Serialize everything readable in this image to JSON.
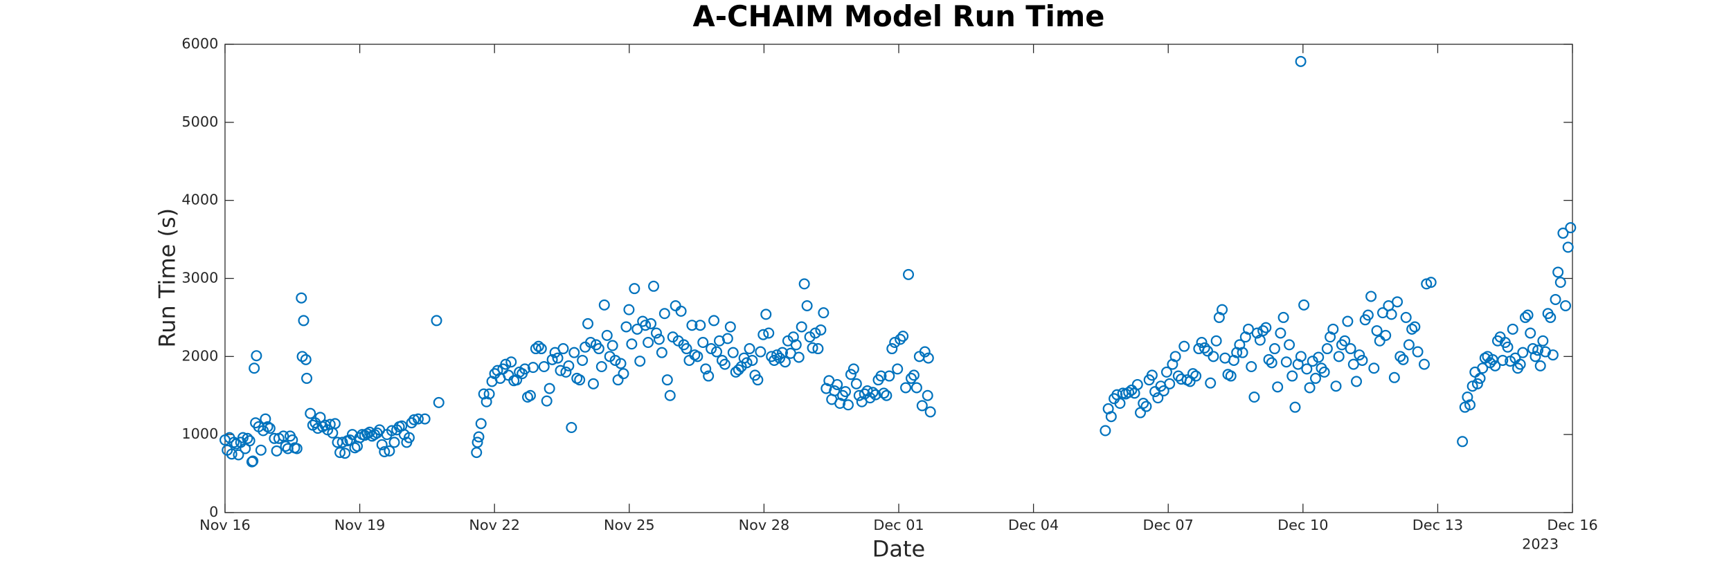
{
  "chart_data": {
    "type": "scatter",
    "title": "A-CHAIM Model Run Time",
    "xlabel": "Date",
    "ylabel": "Run Time (s)",
    "x_offset_label": "2023",
    "color": "#0072bd",
    "xlim": [
      0,
      30
    ],
    "xticks": [
      {
        "value": 0,
        "label": "Nov 16"
      },
      {
        "value": 3,
        "label": "Nov 19"
      },
      {
        "value": 6,
        "label": "Nov 22"
      },
      {
        "value": 9,
        "label": "Nov 25"
      },
      {
        "value": 12,
        "label": "Nov 28"
      },
      {
        "value": 15,
        "label": "Dec 01"
      },
      {
        "value": 18,
        "label": "Dec 04"
      },
      {
        "value": 21,
        "label": "Dec 07"
      },
      {
        "value": 24,
        "label": "Dec 10"
      },
      {
        "value": 27,
        "label": "Dec 13"
      },
      {
        "value": 30,
        "label": "Dec 16"
      }
    ],
    "ylim": [
      0,
      6000
    ],
    "yticks": [
      0,
      1000,
      2000,
      3000,
      4000,
      5000,
      6000
    ],
    "x": [
      0,
      0.05,
      0.1,
      0.15,
      0.2,
      0.25,
      0.3,
      0.35,
      0.4,
      0.45,
      0.5,
      0.55,
      0.6,
      0.62,
      0.65,
      0.7,
      0.68,
      0.75,
      0.8,
      0.85,
      0.9,
      0.95,
      1,
      1.1,
      1.15,
      1.2,
      1.3,
      1.35,
      1.4,
      1.45,
      1.5,
      1.55,
      1.6,
      1.7,
      1.75,
      1.72,
      1.8,
      1.82,
      1.9,
      1.955,
      2.01,
      2.065,
      2.12,
      2.175,
      2.23,
      2.285,
      2.34,
      2.395,
      2.45,
      2.505,
      2.56,
      2.615,
      2.67,
      2.725,
      2.78,
      2.835,
      2.89,
      2.945,
      3,
      3.055,
      3.11,
      3.165,
      3.22,
      3.275,
      3.33,
      3.385,
      3.44,
      3.495,
      3.55,
      3.605,
      3.66,
      3.715,
      3.77,
      3.825,
      3.88,
      3.935,
      3.99,
      4.045,
      4.1,
      4.155,
      4.21,
      4.3,
      4.45,
      4.71,
      4.76,
      5.6,
      5.62,
      5.65,
      5.7,
      5.761,
      5.822,
      5.883,
      5.944,
      6.005,
      6.066,
      6.127,
      6.188,
      6.249,
      6.31,
      6.371,
      6.432,
      6.493,
      6.554,
      6.615,
      6.676,
      6.737,
      6.798,
      6.859,
      6.92,
      6.981,
      7.042,
      7.103,
      7.164,
      7.225,
      7.286,
      7.347,
      7.408,
      7.469,
      7.53,
      7.591,
      7.652,
      7.713,
      7.774,
      7.835,
      7.896,
      7.957,
      8.018,
      8.079,
      8.14,
      8.201,
      8.262,
      8.323,
      8.384,
      8.445,
      8.506,
      8.567,
      8.628,
      8.689,
      8.75,
      8.811,
      8.872,
      8.933,
      8.994,
      9.055,
      9.116,
      9.177,
      9.238,
      9.299,
      9.36,
      9.421,
      9.482,
      9.543,
      9.604,
      9.665,
      9.726,
      9.787,
      9.848,
      9.909,
      9.97,
      10.031,
      10.092,
      10.153,
      10.214,
      10.275,
      10.336,
      10.397,
      10.458,
      10.519,
      10.58,
      10.641,
      10.702,
      10.763,
      10.824,
      10.885,
      10.946,
      11.007,
      11.068,
      11.129,
      11.19,
      11.251,
      11.312,
      11.373,
      11.434,
      11.495,
      11.556,
      11.617,
      11.678,
      11.739,
      11.8,
      11.861,
      11.922,
      11.983,
      12.044,
      12.105,
      12.166,
      12.227,
      12.288,
      12.349,
      12.41,
      12.471,
      12.532,
      12.593,
      12.654,
      12.715,
      12.776,
      12.837,
      12.898,
      12.959,
      13.02,
      13.081,
      13.142,
      13.203,
      13.264,
      13.325,
      13.386,
      13.447,
      13.508,
      13.569,
      13.63,
      13.691,
      13.752,
      13.813,
      13.874,
      13.935,
      13.996,
      14.057,
      14.118,
      14.179,
      14.24,
      14.301,
      14.362,
      14.423,
      14.484,
      14.545,
      14.606,
      14.667,
      14.728,
      14.789,
      14.85,
      14.911,
      14.972,
      15.033,
      15.094,
      15.155,
      15.216,
      15.277,
      15.338,
      15.399,
      15.46,
      15.521,
      15.582,
      15.643,
      15.704,
      15.66,
      19.6,
      19.665,
      19.73,
      19.795,
      19.86,
      19.925,
      19.99,
      20.055,
      20.12,
      20.185,
      20.25,
      20.315,
      20.38,
      20.445,
      20.51,
      20.575,
      20.64,
      20.705,
      20.77,
      20.835,
      20.9,
      20.965,
      21.03,
      21.095,
      21.16,
      21.225,
      21.29,
      21.355,
      21.42,
      21.485,
      21.55,
      21.615,
      21.68,
      21.745,
      21.81,
      21.875,
      21.94,
      22.005,
      22.07,
      22.135,
      22.2,
      22.265,
      22.33,
      22.395,
      22.46,
      22.525,
      22.59,
      22.655,
      22.72,
      22.785,
      22.85,
      22.915,
      22.98,
      23.045,
      23.11,
      23.175,
      23.24,
      23.305,
      23.37,
      23.435,
      23.5,
      23.565,
      23.63,
      23.695,
      23.76,
      23.825,
      23.89,
      23.955,
      24.02,
      24.085,
      24.15,
      24.215,
      24.28,
      24.345,
      24.41,
      24.475,
      24.54,
      24.605,
      24.67,
      24.735,
      24.8,
      24.865,
      24.93,
      24.995,
      25.06,
      25.125,
      25.19,
      25.255,
      25.32,
      25.385,
      25.45,
      25.515,
      25.58,
      25.645,
      25.71,
      25.775,
      25.84,
      25.905,
      25.97,
      26.035,
      26.1,
      26.165,
      26.23,
      26.295,
      26.36,
      26.425,
      26.49,
      26.555,
      23.95,
      26.7,
      26.75,
      26.85,
      27.55,
      27.606,
      27.662,
      27.718,
      27.774,
      27.83,
      27.886,
      27.942,
      27.998,
      28.054,
      28.11,
      28.166,
      28.222,
      28.278,
      28.334,
      28.39,
      28.446,
      28.502,
      28.558,
      28.614,
      28.67,
      28.726,
      28.782,
      28.838,
      28.894,
      28.95,
      29.006,
      29.062,
      29.118,
      29.174,
      29.23,
      29.286,
      29.342,
      29.398,
      29.454,
      29.51,
      29.566,
      29.622,
      29.678,
      29.734,
      29.79,
      29.846,
      29.902,
      29.958
    ],
    "values": [
      930,
      800,
      960,
      750,
      900,
      880,
      740,
      900,
      960,
      820,
      950,
      920,
      650,
      660,
      1850,
      2010,
      1150,
      1100,
      800,
      1050,
      1200,
      1100,
      1080,
      950,
      790,
      950,
      980,
      850,
      820,
      980,
      930,
      830,
      820,
      2750,
      2460,
      2000,
      1960,
      1720,
      1270,
      1120,
      1150,
      1080,
      1220,
      1100,
      1120,
      1060,
      1130,
      1020,
      1140,
      900,
      770,
      900,
      760,
      920,
      930,
      1000,
      830,
      850,
      960,
      1000,
      990,
      1010,
      1030,
      980,
      1000,
      1020,
      1060,
      870,
      780,
      1000,
      790,
      1050,
      900,
      1060,
      1100,
      1110,
      1000,
      900,
      960,
      1150,
      1190,
      1200,
      1200,
      2460,
      1410,
      770,
      900,
      970,
      1140,
      1520,
      1420,
      1520,
      1680,
      1780,
      1820,
      1720,
      1840,
      1900,
      1760,
      1930,
      1690,
      1700,
      1800,
      1780,
      1840,
      1480,
      1500,
      1860,
      2100,
      2130,
      2100,
      1870,
      1430,
      1590,
      1960,
      2050,
      1980,
      1820,
      2100,
      1800,
      1880,
      1090,
      2050,
      1720,
      1700,
      1950,
      2120,
      2420,
      2180,
      1650,
      2150,
      2100,
      1870,
      2660,
      2270,
      2000,
      2140,
      1950,
      1700,
      1910,
      1780,
      2380,
      2600,
      2160,
      2870,
      2350,
      1940,
      2450,
      2400,
      2180,
      2420,
      2900,
      2300,
      2220,
      2050,
      2550,
      1700,
      1500,
      2250,
      2650,
      2200,
      2580,
      2150,
      2100,
      1950,
      2400,
      2020,
      2000,
      2400,
      2180,
      1840,
      1750,
      2100,
      2460,
      2060,
      2200,
      1950,
      1900,
      2230,
      2380,
      2050,
      1800,
      1830,
      1870,
      1980,
      1920,
      2100,
      1950,
      1760,
      1700,
      2060,
      2280,
      2540,
      2300,
      2000,
      1950,
      2020,
      1980,
      2050,
      1930,
      2200,
      2040,
      2250,
      2150,
      1990,
      2380,
      2930,
      2650,
      2250,
      2110,
      2300,
      2100,
      2340,
      2560,
      1590,
      1690,
      1450,
      1560,
      1640,
      1400,
      1500,
      1550,
      1380,
      1770,
      1840,
      1650,
      1500,
      1420,
      1520,
      1560,
      1470,
      1540,
      1510,
      1700,
      1750,
      1530,
      1500,
      1750,
      2100,
      2180,
      1840,
      2220,
      2260,
      1600,
      3050,
      1720,
      1760,
      1600,
      2000,
      1370,
      2060,
      1500,
      1290,
      1980,
      1050,
      1330,
      1230,
      1460,
      1510,
      1400,
      1530,
      1520,
      1540,
      1570,
      1530,
      1640,
      1280,
      1400,
      1360,
      1700,
      1760,
      1550,
      1470,
      1620,
      1560,
      1800,
      1650,
      1900,
      2000,
      1750,
      1710,
      2130,
      1700,
      1680,
      1780,
      1750,
      2100,
      2180,
      2110,
      2070,
      1660,
      2000,
      2200,
      2500,
      2600,
      1980,
      1770,
      1750,
      1950,
      2050,
      2150,
      2050,
      2250,
      2350,
      1870,
      1480,
      2300,
      2210,
      2330,
      2370,
      1960,
      1920,
      2100,
      1610,
      2300,
      2500,
      1930,
      2150,
      1750,
      1350,
      1900,
      2000,
      2660,
      1840,
      1600,
      1940,
      1720,
      1990,
      1850,
      1800,
      2100,
      2250,
      2350,
      1620,
      2000,
      2150,
      2200,
      2450,
      2100,
      1900,
      1680,
      2020,
      1950,
      2470,
      2530,
      2770,
      1850,
      2330,
      2200,
      2560,
      2270,
      2650,
      2540,
      1730,
      2700,
      2000,
      1960,
      2500,
      2150,
      2350,
      2380,
      2060,
      5780,
      1900,
      2930,
      2950,
      910,
      1350,
      1480,
      1380,
      1620,
      1800,
      1650,
      1720,
      1850,
      1980,
      2000,
      1920,
      1960,
      1880,
      2200,
      2250,
      1950,
      2180,
      2120,
      1940,
      2350,
      1980,
      1850,
      1900,
      2050,
      2500,
      2530,
      2300,
      2100,
      2000,
      2080,
      1880,
      2200,
      2060,
      2550,
      2500,
      2020,
      2730,
      3080,
      2950,
      3580,
      2650,
      3400,
      3650
    ]
  }
}
